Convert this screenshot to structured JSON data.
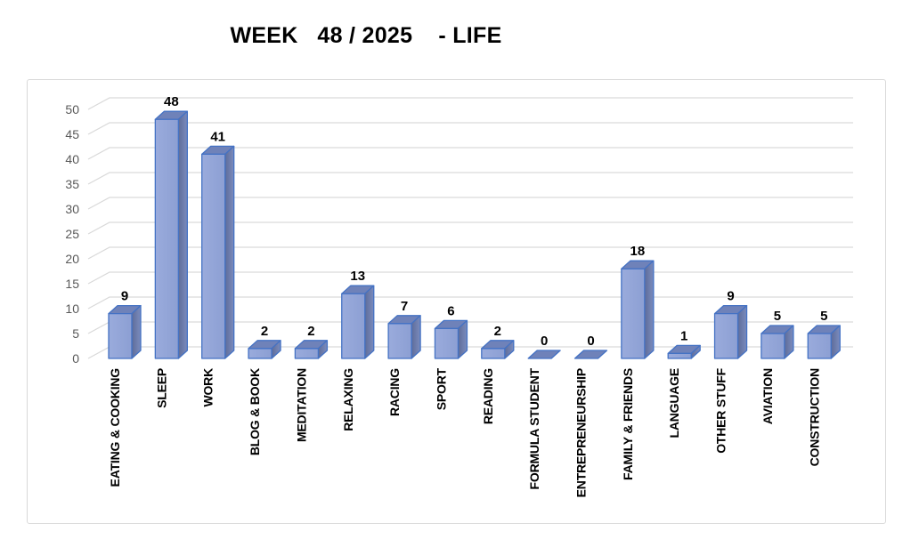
{
  "title": "WEEK   48 / 2025    - LIFE",
  "chart_data": {
    "type": "bar",
    "style": "excel-3d-clustered-column",
    "title": "WEEK   48 / 2025    - LIFE",
    "categories": [
      "EATING & COOKING",
      "SLEEP",
      "WORK",
      "BLOG & BOOK",
      "MEDITATION",
      "RELAXING",
      "RACING",
      "SPORT",
      "READING",
      "FORMULA STUDENT",
      "ENTREPRENEURSHIP",
      "FAMILY & FRIENDS",
      "LANGUAGE",
      "OTHER STUFF",
      "AVIATION",
      "CONSTRUCTION"
    ],
    "values": [
      9,
      48,
      41,
      2,
      2,
      13,
      7,
      6,
      2,
      0,
      0,
      18,
      1,
      9,
      5,
      5
    ],
    "xlabel": "",
    "ylabel": "",
    "ylim": [
      0,
      50
    ],
    "ytick_step": 5,
    "yticks": [
      0,
      5,
      10,
      15,
      20,
      25,
      30,
      35,
      40,
      45,
      50
    ],
    "grid": true,
    "legend": false,
    "data_labels": true,
    "colors": {
      "bar_front": "#9AABDC",
      "bar_front_dark": "#8C9FD3",
      "bar_top": "#6F82B9",
      "bar_side_dark": "#5E6C99",
      "bar_side_light": "#7B8CBE",
      "bar_border": "#4472C4",
      "gridline": "#D9D9D9",
      "axis_text": "#595959",
      "label_text": "#000000",
      "chart_border": "#D9D9D9",
      "background": "#FFFFFF"
    }
  }
}
